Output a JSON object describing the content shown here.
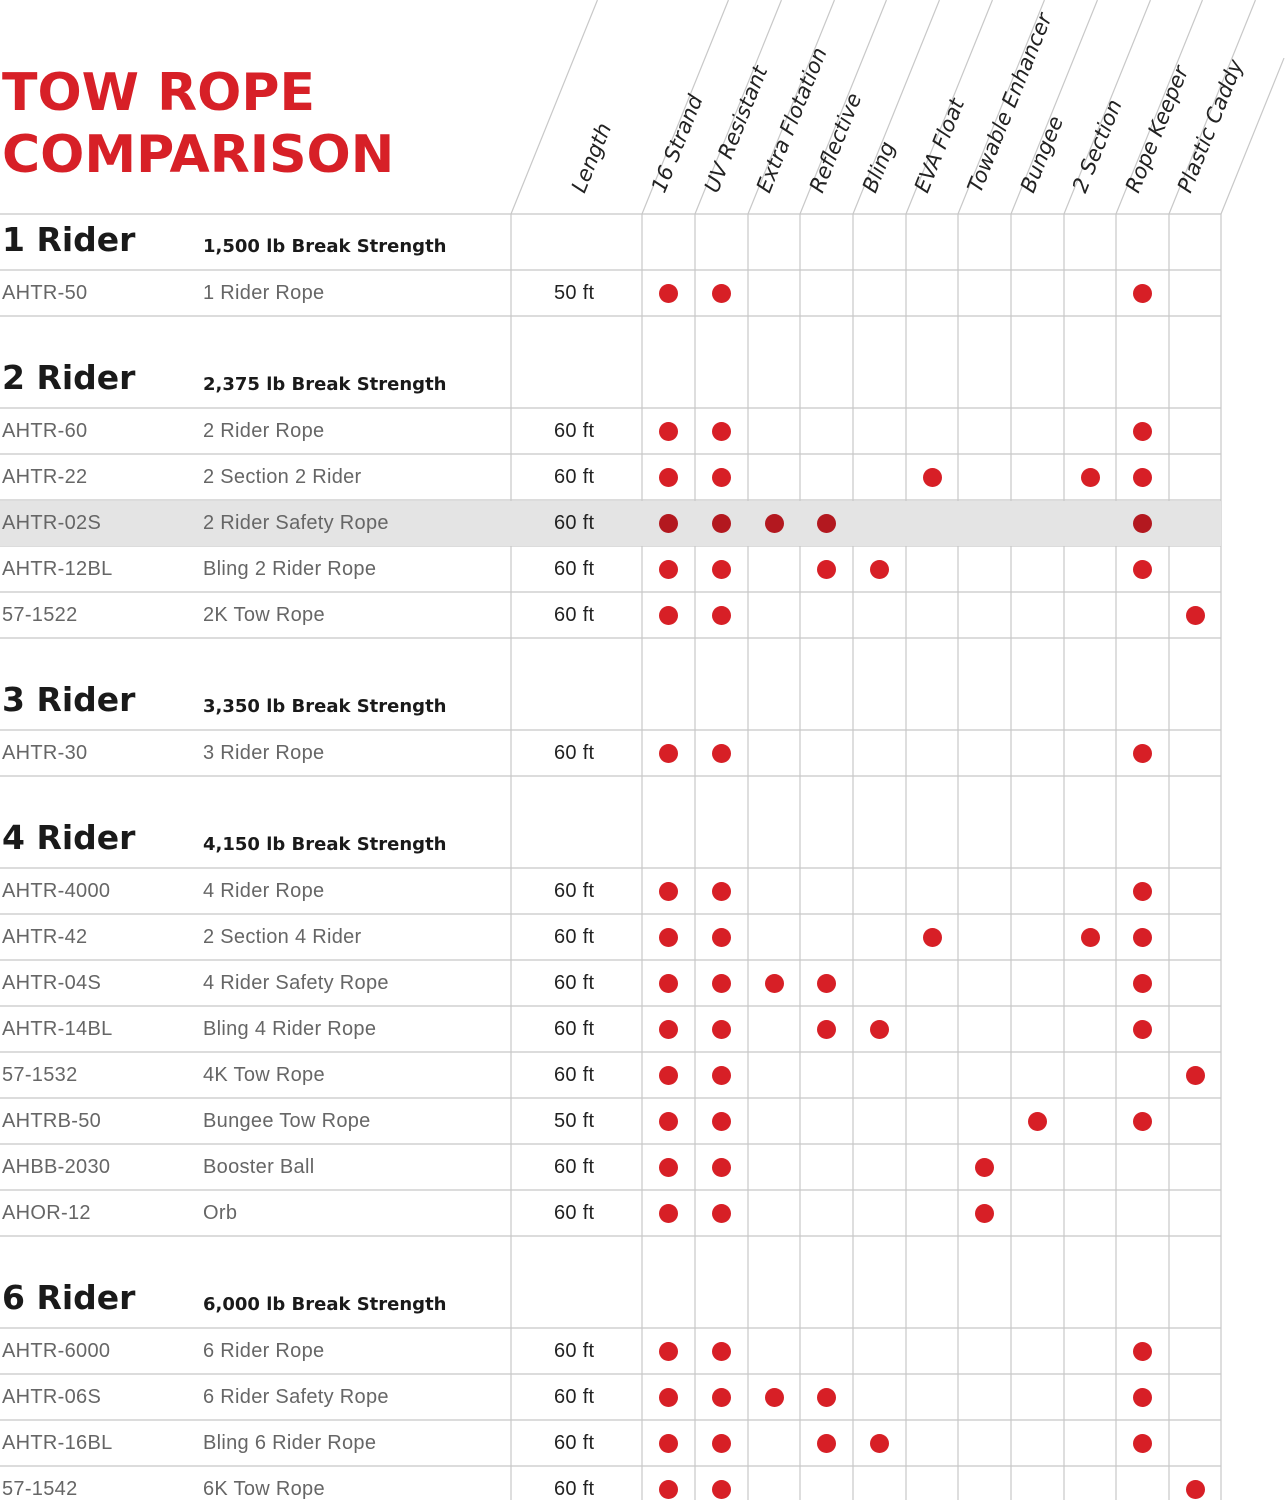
{
  "title": {
    "line1": "TOW ROPE",
    "line2": "COMPARISON"
  },
  "columns": {
    "length_label": "Length",
    "features": [
      "16 Strand",
      "UV Resistant",
      "Extra Flotation",
      "Reflective",
      "Bling",
      "EVA Float",
      "Towable Enhancer",
      "Bungee",
      "2 Section",
      "Rope Keeper",
      "Plastic Caddy"
    ]
  },
  "colors": {
    "accent": "#d72027",
    "highlight_row": "#e4e4e4",
    "grid": "#c8c8c8"
  },
  "groups": [
    {
      "name": "1 Rider",
      "strength": "1,500 lb Break Strength",
      "rows": [
        {
          "sku": "AHTR-50",
          "name": "1 Rider Rope",
          "length": "50 ft",
          "features": [
            1,
            1,
            0,
            0,
            0,
            0,
            0,
            0,
            0,
            1,
            0
          ]
        }
      ]
    },
    {
      "name": "2 Rider",
      "strength": "2,375 lb Break Strength",
      "rows": [
        {
          "sku": "AHTR-60",
          "name": "2 Rider Rope",
          "length": "60 ft",
          "features": [
            1,
            1,
            0,
            0,
            0,
            0,
            0,
            0,
            0,
            1,
            0
          ]
        },
        {
          "sku": "AHTR-22",
          "name": "2 Section 2 Rider",
          "length": "60 ft",
          "features": [
            1,
            1,
            0,
            0,
            0,
            1,
            0,
            0,
            1,
            1,
            0
          ]
        },
        {
          "sku": "AHTR-02S",
          "name": "2 Rider Safety Rope",
          "length": "60 ft",
          "features": [
            1,
            1,
            1,
            1,
            0,
            0,
            0,
            0,
            0,
            1,
            0
          ],
          "highlighted": true
        },
        {
          "sku": "AHTR-12BL",
          "name": "Bling 2 Rider Rope",
          "length": "60 ft",
          "features": [
            1,
            1,
            0,
            1,
            1,
            0,
            0,
            0,
            0,
            1,
            0
          ]
        },
        {
          "sku": "57-1522",
          "name": "2K Tow Rope",
          "length": "60 ft",
          "features": [
            1,
            1,
            0,
            0,
            0,
            0,
            0,
            0,
            0,
            0,
            1
          ]
        }
      ]
    },
    {
      "name": "3 Rider",
      "strength": "3,350 lb Break Strength",
      "rows": [
        {
          "sku": "AHTR-30",
          "name": "3 Rider Rope",
          "length": "60 ft",
          "features": [
            1,
            1,
            0,
            0,
            0,
            0,
            0,
            0,
            0,
            1,
            0
          ]
        }
      ]
    },
    {
      "name": "4 Rider",
      "strength": "4,150 lb Break Strength",
      "rows": [
        {
          "sku": "AHTR-4000",
          "name": "4 Rider Rope",
          "length": "60 ft",
          "features": [
            1,
            1,
            0,
            0,
            0,
            0,
            0,
            0,
            0,
            1,
            0
          ]
        },
        {
          "sku": "AHTR-42",
          "name": "2 Section 4 Rider",
          "length": "60 ft",
          "features": [
            1,
            1,
            0,
            0,
            0,
            1,
            0,
            0,
            1,
            1,
            0
          ]
        },
        {
          "sku": "AHTR-04S",
          "name": "4 Rider Safety Rope",
          "length": "60 ft",
          "features": [
            1,
            1,
            1,
            1,
            0,
            0,
            0,
            0,
            0,
            1,
            0
          ]
        },
        {
          "sku": "AHTR-14BL",
          "name": "Bling 4 Rider Rope",
          "length": "60 ft",
          "features": [
            1,
            1,
            0,
            1,
            1,
            0,
            0,
            0,
            0,
            1,
            0
          ]
        },
        {
          "sku": "57-1532",
          "name": "4K Tow Rope",
          "length": "60 ft",
          "features": [
            1,
            1,
            0,
            0,
            0,
            0,
            0,
            0,
            0,
            0,
            1
          ]
        },
        {
          "sku": "AHTRB-50",
          "name": "Bungee Tow Rope",
          "length": "50 ft",
          "features": [
            1,
            1,
            0,
            0,
            0,
            0,
            0,
            1,
            0,
            1,
            0
          ]
        },
        {
          "sku": "AHBB-2030",
          "name": "Booster Ball",
          "length": "60 ft",
          "features": [
            1,
            1,
            0,
            0,
            0,
            0,
            1,
            0,
            0,
            0,
            0
          ]
        },
        {
          "sku": "AHOR-12",
          "name": "Orb",
          "length": "60 ft",
          "features": [
            1,
            1,
            0,
            0,
            0,
            0,
            1,
            0,
            0,
            0,
            0
          ]
        }
      ]
    },
    {
      "name": "6 Rider",
      "strength": "6,000 lb Break Strength",
      "rows": [
        {
          "sku": "AHTR-6000",
          "name": "6 Rider Rope",
          "length": "60 ft",
          "features": [
            1,
            1,
            0,
            0,
            0,
            0,
            0,
            0,
            0,
            1,
            0
          ]
        },
        {
          "sku": "AHTR-06S",
          "name": "6 Rider Safety Rope",
          "length": "60 ft",
          "features": [
            1,
            1,
            1,
            1,
            0,
            0,
            0,
            0,
            0,
            1,
            0
          ]
        },
        {
          "sku": "AHTR-16BL",
          "name": "Bling 6 Rider Rope",
          "length": "60 ft",
          "features": [
            1,
            1,
            0,
            1,
            1,
            0,
            0,
            0,
            0,
            1,
            0
          ]
        },
        {
          "sku": "57-1542",
          "name": "6K Tow Rope",
          "length": "60 ft",
          "features": [
            1,
            1,
            0,
            0,
            0,
            0,
            0,
            0,
            0,
            0,
            1
          ]
        }
      ]
    }
  ]
}
